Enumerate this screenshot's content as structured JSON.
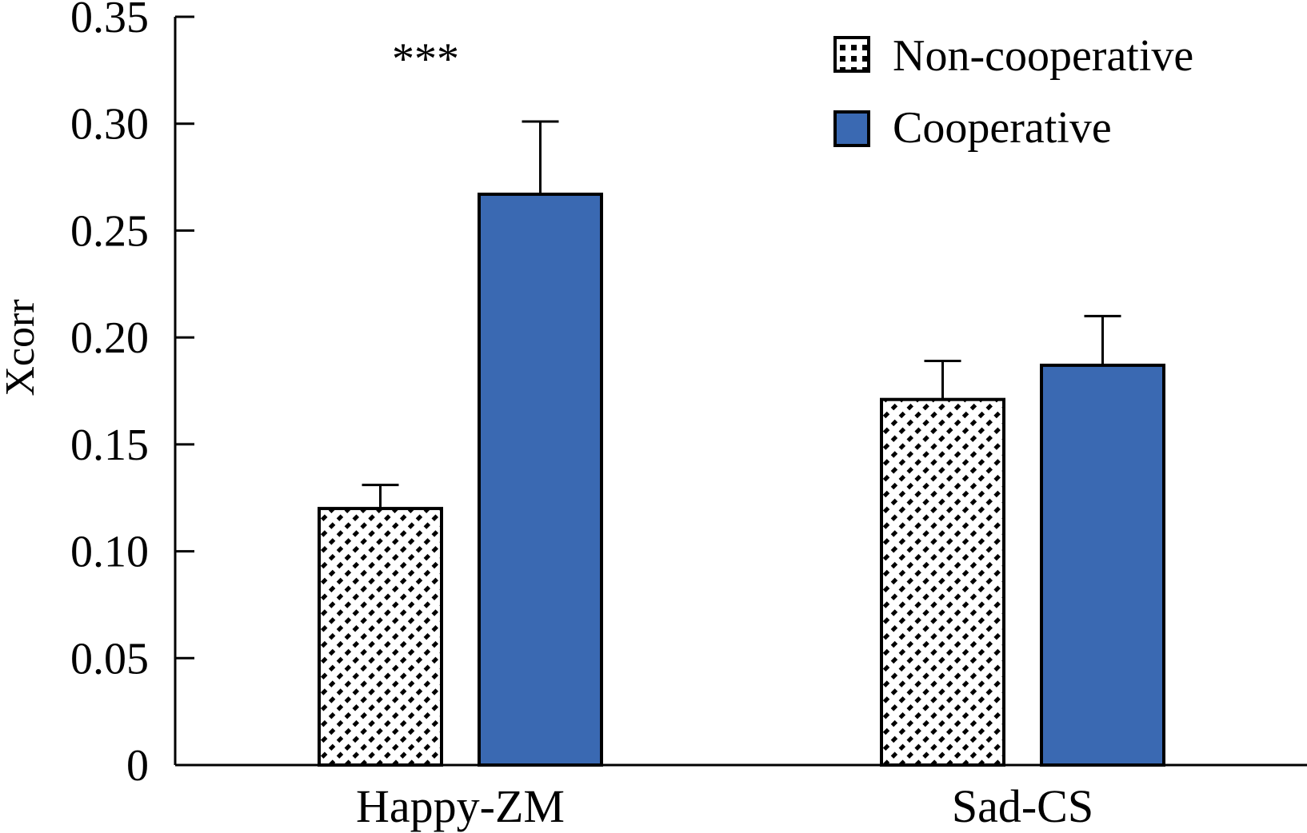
{
  "chart_data": {
    "type": "bar",
    "title": "",
    "xlabel": "",
    "ylabel": "Xcorr",
    "ylim": [
      0,
      0.35
    ],
    "yticks": [
      "0",
      "0.05",
      "0.10",
      "0.15",
      "0.20",
      "0.25",
      "0.30",
      "0.35"
    ],
    "categories": [
      "Happy-ZM",
      "Sad-CS"
    ],
    "series": [
      {
        "name": "Non-cooperative",
        "values": [
          0.12,
          0.171
        ],
        "errors": [
          0.011,
          0.018
        ],
        "fill": "hatch"
      },
      {
        "name": "Cooperative",
        "values": [
          0.267,
          0.187
        ],
        "errors": [
          0.034,
          0.023
        ],
        "color": "#3a69b2"
      }
    ],
    "annotations": [
      {
        "text": "***",
        "category": "Happy-ZM"
      }
    ],
    "legend": "top-right",
    "grid": false
  }
}
